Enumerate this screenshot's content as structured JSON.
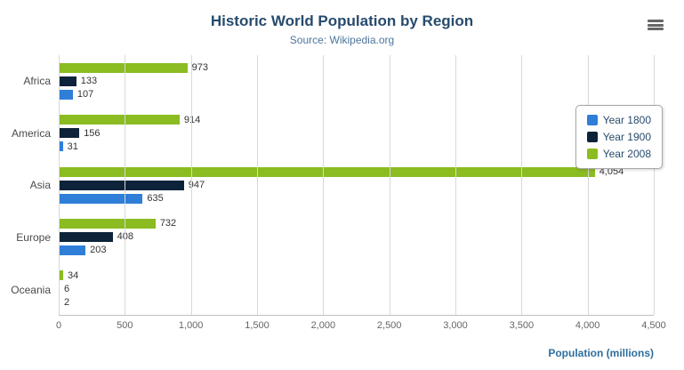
{
  "title": "Historic World Population by Region",
  "subtitle": "Source: Wikipedia.org",
  "xaxis": {
    "title": "Population (millions)",
    "ticks": [
      "0",
      "500",
      "1,000",
      "1,500",
      "2,000",
      "2,500",
      "3,000",
      "3,500",
      "4,000",
      "4,500"
    ]
  },
  "chart_data": {
    "type": "bar",
    "title": "Historic World Population by Region",
    "subtitle": "Source: Wikipedia.org",
    "xlabel": "Population (millions)",
    "categories": [
      "Africa",
      "America",
      "Asia",
      "Europe",
      "Oceania"
    ],
    "series": [
      {
        "name": "Year 1800",
        "color": "#2f7ed8",
        "values": [
          107,
          31,
          635,
          203,
          2
        ],
        "labels": [
          "107",
          "31",
          "635",
          "203",
          "2"
        ]
      },
      {
        "name": "Year 1900",
        "color": "#0d233a",
        "values": [
          133,
          156,
          947,
          408,
          6
        ],
        "labels": [
          "133",
          "156",
          "947",
          "408",
          "6"
        ]
      },
      {
        "name": "Year 2008",
        "color": "#8bbc21",
        "values": [
          973,
          914,
          4054,
          732,
          34
        ],
        "labels": [
          "973",
          "914",
          "4,054",
          "732",
          "34"
        ]
      }
    ],
    "xlim": [
      0,
      4500
    ],
    "grid": "vertical",
    "legend_position": "right",
    "bar_order_top_to_bottom": [
      "Year 2008",
      "Year 1900",
      "Year 1800"
    ]
  }
}
